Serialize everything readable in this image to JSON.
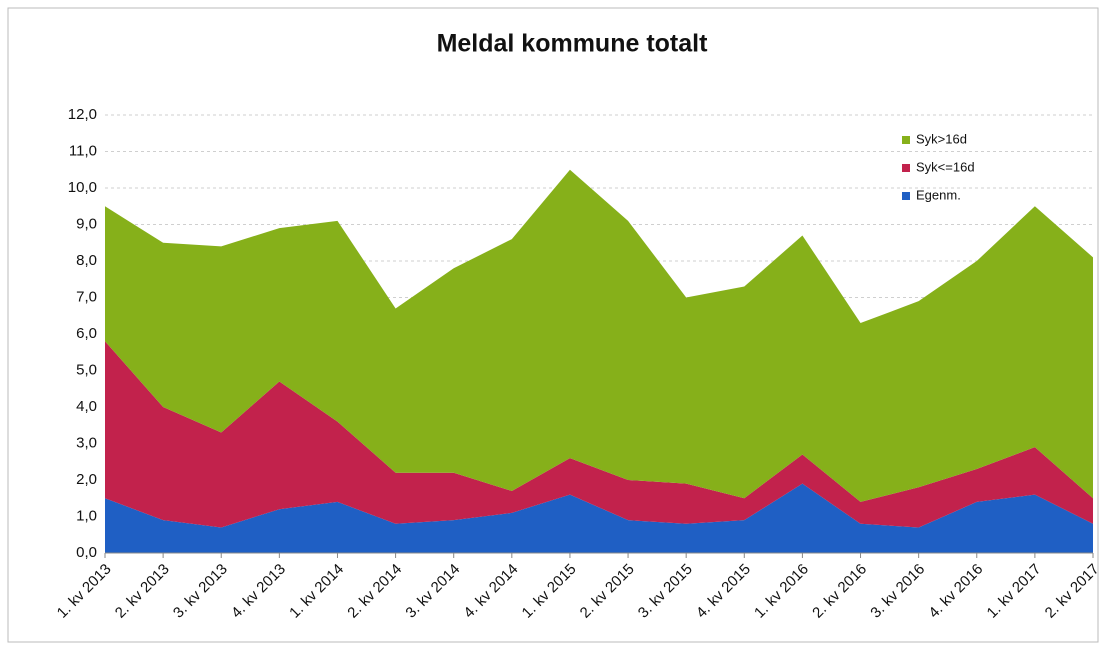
{
  "chart_data": {
    "type": "stacked_area",
    "title": "Meldal kommune totalt",
    "categories": [
      "1. kv 2013",
      "2. kv 2013",
      "3. kv 2013",
      "4. kv 2013",
      "1. kv 2014",
      "2. kv 2014",
      "3. kv 2014",
      "4. kv 2014",
      "1. kv 2015",
      "2. kv 2015",
      "3. kv 2015",
      "4. kv 2015",
      "1. kv 2016",
      "2. kv 2016",
      "3. kv 2016",
      "4. kv 2016",
      "1. kv 2017",
      "2. kv 2017"
    ],
    "series": [
      {
        "name": "Egenm.",
        "color": "#1f5fc4",
        "values": [
          1.5,
          0.9,
          0.7,
          1.2,
          1.4,
          0.8,
          0.9,
          1.1,
          1.6,
          0.9,
          0.8,
          0.9,
          1.9,
          0.8,
          0.7,
          1.4,
          1.6,
          0.8
        ]
      },
      {
        "name": "Syk<=16d",
        "color": "#c2224c",
        "values": [
          4.3,
          3.1,
          2.6,
          3.5,
          2.2,
          1.4,
          1.3,
          0.6,
          1.0,
          1.1,
          1.1,
          0.6,
          0.8,
          0.6,
          1.1,
          0.9,
          1.3,
          0.7
        ]
      },
      {
        "name": "Syk>16d",
        "color": "#86b01a",
        "values": [
          3.7,
          4.5,
          5.1,
          4.2,
          5.5,
          4.5,
          5.6,
          6.9,
          7.9,
          7.1,
          5.1,
          5.8,
          6.0,
          4.9,
          5.1,
          5.7,
          6.6,
          6.6
        ]
      }
    ],
    "ylim": [
      0,
      12
    ],
    "yticks": [
      {
        "value": 0,
        "label": "0,0"
      },
      {
        "value": 1,
        "label": "1,0"
      },
      {
        "value": 2,
        "label": "2,0"
      },
      {
        "value": 3,
        "label": "3,0"
      },
      {
        "value": 4,
        "label": "4,0"
      },
      {
        "value": 5,
        "label": "5,0"
      },
      {
        "value": 6,
        "label": "6,0"
      },
      {
        "value": 7,
        "label": "7,0"
      },
      {
        "value": 8,
        "label": "8,0"
      },
      {
        "value": 9,
        "label": "9,0"
      },
      {
        "value": 10,
        "label": "10,0"
      },
      {
        "value": 11,
        "label": "11,0"
      },
      {
        "value": 12,
        "label": "12,0"
      }
    ],
    "grid": true,
    "legend": "top-right"
  }
}
